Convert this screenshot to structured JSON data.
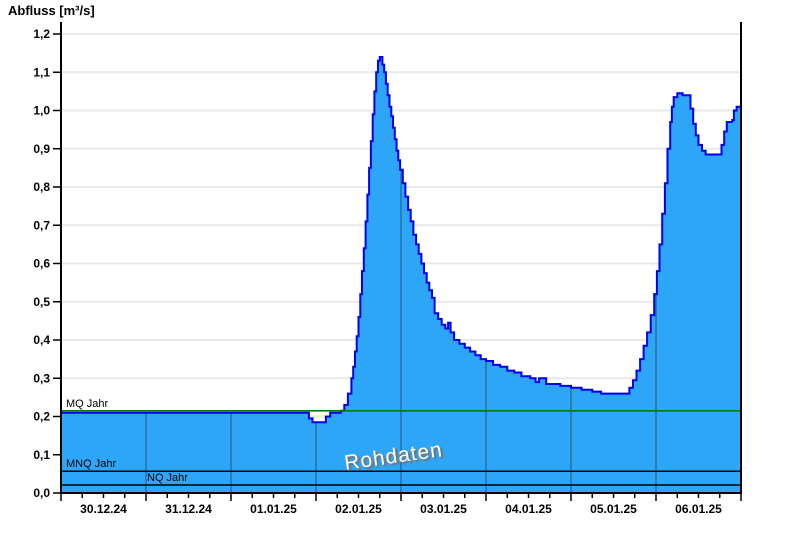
{
  "chart_data": {
    "type": "area",
    "title": "Abfluss [m³/s]",
    "watermark": "Rohdaten",
    "grid": true,
    "x_axis": {
      "day_labels": [
        "30.12.24",
        "31.12.24",
        "01.01.25",
        "02.01.25",
        "03.01.25",
        "04.01.25",
        "05.01.25",
        "06.01.25"
      ],
      "total_hours": 192,
      "minor_tick_hours": 6,
      "major_tick_hours": 24
    },
    "y_axis": {
      "min": 0.0,
      "max": 1.2,
      "step": 0.1,
      "tick_labels": [
        "0,0",
        "0,1",
        "0,2",
        "0,3",
        "0,4",
        "0,5",
        "0,6",
        "0,7",
        "0,8",
        "0,9",
        "1,0",
        "1,1",
        "1,2"
      ]
    },
    "series": [
      {
        "name": "Abfluss Rohdaten",
        "unit": "m³/s",
        "render": "step-after",
        "points": [
          [
            0,
            0.21
          ],
          [
            69,
            0.21
          ],
          [
            70,
            0.195
          ],
          [
            71,
            0.185
          ],
          [
            74,
            0.185
          ],
          [
            74.8,
            0.2
          ],
          [
            76,
            0.21
          ],
          [
            79,
            0.215
          ],
          [
            80,
            0.23
          ],
          [
            81,
            0.26
          ],
          [
            82,
            0.3
          ],
          [
            82.5,
            0.33
          ],
          [
            83,
            0.37
          ],
          [
            83.5,
            0.41
          ],
          [
            84,
            0.46
          ],
          [
            84.5,
            0.52
          ],
          [
            85,
            0.58
          ],
          [
            85.5,
            0.64
          ],
          [
            86,
            0.71
          ],
          [
            86.5,
            0.78
          ],
          [
            87,
            0.85
          ],
          [
            87.5,
            0.92
          ],
          [
            88,
            0.99
          ],
          [
            88.5,
            1.05
          ],
          [
            89,
            1.1
          ],
          [
            89.5,
            1.13
          ],
          [
            90,
            1.14
          ],
          [
            90.75,
            1.12
          ],
          [
            91.25,
            1.1
          ],
          [
            91.75,
            1.07
          ],
          [
            92.25,
            1.04
          ],
          [
            92.75,
            1.01
          ],
          [
            93.25,
            0.985
          ],
          [
            93.75,
            0.955
          ],
          [
            94.25,
            0.925
          ],
          [
            94.75,
            0.895
          ],
          [
            95.25,
            0.87
          ],
          [
            95.75,
            0.845
          ],
          [
            96.5,
            0.81
          ],
          [
            97.25,
            0.775
          ],
          [
            98,
            0.74
          ],
          [
            98.75,
            0.71
          ],
          [
            99.5,
            0.675
          ],
          [
            100.25,
            0.65
          ],
          [
            101,
            0.625
          ],
          [
            101.75,
            0.6
          ],
          [
            102.5,
            0.575
          ],
          [
            103.25,
            0.55
          ],
          [
            104,
            0.53
          ],
          [
            104.75,
            0.51
          ],
          [
            105.5,
            0.47
          ],
          [
            106.5,
            0.455
          ],
          [
            107.5,
            0.44
          ],
          [
            108.5,
            0.43
          ],
          [
            109.3,
            0.445
          ],
          [
            110,
            0.42
          ],
          [
            111,
            0.4
          ],
          [
            112.5,
            0.39
          ],
          [
            114,
            0.38
          ],
          [
            115.5,
            0.37
          ],
          [
            117,
            0.36
          ],
          [
            118.5,
            0.35
          ],
          [
            120,
            0.345
          ],
          [
            122,
            0.335
          ],
          [
            124,
            0.33
          ],
          [
            126,
            0.32
          ],
          [
            128,
            0.315
          ],
          [
            130,
            0.305
          ],
          [
            132.5,
            0.3
          ],
          [
            134,
            0.29
          ],
          [
            135,
            0.3
          ],
          [
            137,
            0.285
          ],
          [
            141,
            0.28
          ],
          [
            144,
            0.275
          ],
          [
            147,
            0.27
          ],
          [
            150,
            0.265
          ],
          [
            152.5,
            0.26
          ],
          [
            159.5,
            0.26
          ],
          [
            160.5,
            0.275
          ],
          [
            161.5,
            0.295
          ],
          [
            162.5,
            0.32
          ],
          [
            163.5,
            0.35
          ],
          [
            164.5,
            0.385
          ],
          [
            165.5,
            0.42
          ],
          [
            166.5,
            0.465
          ],
          [
            167.5,
            0.52
          ],
          [
            168.25,
            0.58
          ],
          [
            169,
            0.65
          ],
          [
            169.75,
            0.73
          ],
          [
            170.5,
            0.81
          ],
          [
            171.25,
            0.9
          ],
          [
            172,
            0.97
          ],
          [
            172.5,
            1.01
          ],
          [
            173,
            1.035
          ],
          [
            174,
            1.045
          ],
          [
            175.5,
            1.04
          ],
          [
            177,
            1.04
          ],
          [
            177.75,
            1.005
          ],
          [
            178.5,
            0.965
          ],
          [
            179.25,
            0.935
          ],
          [
            180,
            0.91
          ],
          [
            181,
            0.895
          ],
          [
            182,
            0.885
          ],
          [
            185.75,
            0.885
          ],
          [
            186.5,
            0.91
          ],
          [
            187.25,
            0.945
          ],
          [
            188,
            0.97
          ],
          [
            189.5,
            0.975
          ],
          [
            190,
            1.0
          ],
          [
            190.75,
            1.01
          ],
          [
            192,
            1.01
          ]
        ]
      }
    ],
    "reference_lines": [
      {
        "label": "MQ Jahr",
        "value": 0.215,
        "color": "#007C00"
      },
      {
        "label": "MNQ Jahr",
        "value": 0.057,
        "color": "#000000"
      },
      {
        "label": "NQ Jahr",
        "value": 0.021,
        "color": "#000000"
      }
    ],
    "colors": {
      "area_fill": "#2EA6F7",
      "area_stroke": "#0000EE",
      "grid_horizontal": "#E9E9E9",
      "day_separator": "#1A2A3A",
      "axis": "#000000",
      "text": "#000000",
      "background": "#FFFFFF"
    }
  }
}
